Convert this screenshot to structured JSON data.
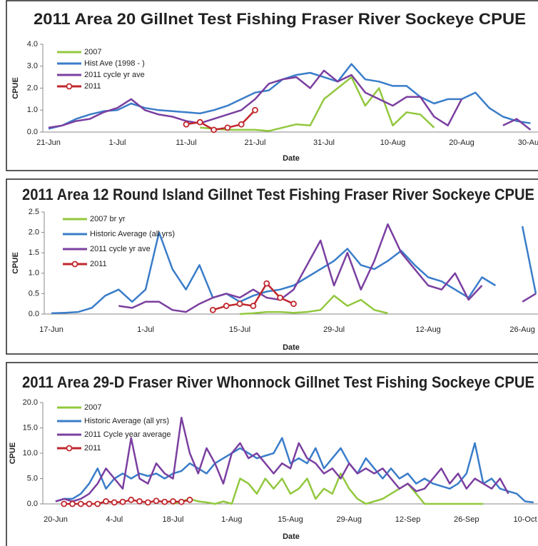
{
  "chart_data": [
    {
      "type": "line",
      "title": "2011 Area 20 Gillnet Test Fishing Fraser River Sockeye CPUE",
      "x_label": "Date",
      "y_label": "CPUE",
      "categories": [
        "21-Jun",
        null,
        null,
        null,
        null,
        "1-Jul",
        null,
        null,
        null,
        null,
        "11-Jul",
        null,
        null,
        null,
        null,
        "21-Jul",
        null,
        null,
        null,
        null,
        "31-Jul",
        null,
        null,
        null,
        null,
        "10-Aug",
        null,
        null,
        null,
        null,
        "20-Aug",
        null,
        null,
        null,
        null,
        "30-Aug"
      ],
      "ylim": [
        0,
        4
      ],
      "yticks": [
        {
          "value": 0,
          "label": "0.0"
        },
        {
          "value": 1,
          "label": "1.0"
        },
        {
          "value": 2,
          "label": "2.0"
        },
        {
          "value": 3,
          "label": "3.0"
        },
        {
          "value": 4,
          "label": "4.0"
        }
      ],
      "legend": "upper left",
      "series": [
        {
          "name": "2007",
          "color": "#92c83e",
          "values": [
            null,
            null,
            null,
            null,
            null,
            null,
            null,
            null,
            null,
            null,
            null,
            0.2,
            0.15,
            0.1,
            0.1,
            0.1,
            0.05,
            0.2,
            0.35,
            0.3,
            1.5,
            2.0,
            2.5,
            1.2,
            2.0,
            0.3,
            0.9,
            0.8,
            0.2,
            null,
            null,
            null,
            null,
            null,
            null,
            null
          ]
        },
        {
          "name": "Hist Ave (1998 - )",
          "color": "#3a7dc9",
          "values": [
            0.15,
            0.3,
            0.6,
            0.8,
            0.95,
            1.0,
            1.3,
            1.1,
            1.0,
            0.95,
            0.9,
            0.85,
            1.0,
            1.2,
            1.5,
            1.8,
            1.9,
            2.4,
            2.6,
            2.7,
            2.5,
            2.3,
            3.1,
            2.4,
            2.3,
            2.1,
            2.1,
            1.6,
            1.3,
            1.5,
            1.5,
            1.8,
            1.1,
            0.7,
            0.5,
            0.4
          ]
        },
        {
          "name": "2011 cycle yr ave",
          "color": "#7b3fa0",
          "values": [
            0.2,
            0.3,
            0.5,
            0.6,
            0.9,
            1.1,
            1.5,
            1.0,
            0.8,
            0.7,
            0.5,
            0.4,
            0.6,
            0.8,
            1.0,
            1.5,
            2.2,
            2.4,
            2.5,
            2.0,
            2.8,
            2.3,
            2.6,
            1.8,
            1.5,
            1.2,
            1.6,
            1.6,
            0.7,
            0.3,
            1.5,
            null,
            null,
            0.3,
            0.6,
            0.1
          ]
        },
        {
          "name": "2011",
          "color": "#c0262c",
          "marker": "circle",
          "values": [
            null,
            null,
            null,
            null,
            null,
            null,
            null,
            null,
            null,
            null,
            0.35,
            0.45,
            0.1,
            0.2,
            0.35,
            1.0,
            null,
            null,
            null,
            null,
            null,
            null,
            null,
            null,
            null,
            null,
            null,
            null,
            null,
            null,
            null,
            null,
            null,
            null,
            null,
            null
          ]
        }
      ]
    },
    {
      "type": "line",
      "title": "2011 Area 12 Round Island Gillnet Test Fishing Fraser River Sockeye CPUE",
      "x_label": "Date",
      "y_label": "CPUE",
      "categories": [
        "17-Jun",
        null,
        null,
        null,
        null,
        null,
        null,
        "1-Jul",
        null,
        null,
        null,
        null,
        null,
        null,
        "15-Jul",
        null,
        null,
        null,
        null,
        null,
        null,
        "29-Jul",
        null,
        null,
        null,
        null,
        null,
        null,
        "12-Aug",
        null,
        null,
        null,
        null,
        null,
        null,
        "26-Aug",
        null
      ],
      "ylim": [
        0,
        2.5
      ],
      "yticks": [
        {
          "value": 0,
          "label": "0.0"
        },
        {
          "value": 0.5,
          "label": "0.5"
        },
        {
          "value": 1,
          "label": "1.0"
        },
        {
          "value": 1.5,
          "label": "1.5"
        },
        {
          "value": 2,
          "label": "2.0"
        },
        2.5
      ],
      "legend": "upper left",
      "series": [
        {
          "name": "2007 br yr",
          "color": "#92c83e",
          "values": [
            null,
            null,
            null,
            null,
            null,
            null,
            null,
            null,
            null,
            null,
            null,
            null,
            null,
            null,
            0.0,
            0.02,
            0.05,
            0.05,
            0.03,
            0.05,
            0.1,
            0.45,
            0.2,
            0.35,
            0.1,
            0.02,
            null,
            null,
            null,
            null,
            null,
            null,
            null,
            null,
            null,
            null,
            null
          ]
        },
        {
          "name": "Historic Average (all yrs)",
          "color": "#3a7dc9",
          "values": [
            0.02,
            0.03,
            0.05,
            0.15,
            0.45,
            0.6,
            0.3,
            0.6,
            2.0,
            1.1,
            0.6,
            1.2,
            0.4,
            0.5,
            0.3,
            0.45,
            0.55,
            0.6,
            0.7,
            0.9,
            1.1,
            1.3,
            1.6,
            1.2,
            1.1,
            1.3,
            1.55,
            1.2,
            0.9,
            0.8,
            0.6,
            0.4,
            0.9,
            0.7,
            null,
            2.15,
            0.5
          ]
        },
        {
          "name": "2011 cycle yr ave",
          "color": "#7b3fa0",
          "values": [
            null,
            null,
            null,
            null,
            null,
            0.2,
            0.15,
            0.3,
            0.3,
            0.1,
            0.05,
            0.25,
            0.4,
            0.5,
            0.4,
            0.6,
            0.4,
            0.35,
            0.6,
            1.2,
            1.8,
            0.7,
            1.5,
            0.6,
            1.3,
            2.2,
            1.5,
            1.1,
            0.7,
            0.6,
            1.0,
            0.35,
            0.7,
            null,
            null,
            0.3,
            0.5
          ]
        },
        {
          "name": "2011",
          "color": "#c0262c",
          "marker": "circle",
          "values": [
            null,
            null,
            null,
            null,
            null,
            null,
            null,
            null,
            null,
            null,
            null,
            null,
            0.1,
            0.2,
            0.25,
            0.2,
            0.75,
            0.4,
            0.25,
            null,
            null,
            null,
            null,
            null,
            null,
            null,
            null,
            null,
            null,
            null,
            null,
            null,
            null,
            null,
            null,
            null,
            null
          ]
        }
      ]
    },
    {
      "type": "line",
      "title": "2011 Area 29-D Fraser River Whonnock Gillnet Test Fishing Sockeye CPUE",
      "x_label": "Date",
      "y_label": "CPUE",
      "categories": [
        "20-Jun",
        null,
        null,
        null,
        null,
        null,
        null,
        "4-Jul",
        null,
        null,
        null,
        null,
        null,
        null,
        "18-Jul",
        null,
        null,
        null,
        null,
        null,
        null,
        "1-Aug",
        null,
        null,
        null,
        null,
        null,
        null,
        "15-Aug",
        null,
        null,
        null,
        null,
        null,
        null,
        "29-Aug",
        null,
        null,
        null,
        null,
        null,
        null,
        "12-Sep",
        null,
        null,
        null,
        null,
        null,
        null,
        "26-Sep",
        null,
        null,
        null,
        null,
        null,
        null,
        "10-Oct",
        null
      ],
      "ylim": [
        0,
        20
      ],
      "yticks": [
        {
          "value": 0,
          "label": "0.0"
        },
        {
          "value": 5,
          "label": "5.0"
        },
        {
          "value": 10,
          "label": "10.0"
        },
        {
          "value": 15,
          "label": "15.0"
        },
        {
          "value": 20,
          "label": "20.0"
        }
      ],
      "legend": "upper left",
      "series": [
        {
          "name": "2007",
          "color": "#92c83e",
          "values": [
            null,
            null,
            null,
            null,
            null,
            null,
            null,
            null,
            null,
            null,
            null,
            null,
            null,
            null,
            0,
            0.5,
            1,
            0.5,
            0.3,
            0,
            0.5,
            0,
            5,
            4,
            2,
            5,
            3,
            5,
            2,
            3,
            5,
            1,
            3,
            2,
            6,
            3,
            1,
            0,
            0.5,
            1,
            2,
            3,
            4,
            2,
            0,
            0,
            0,
            0,
            0,
            0,
            0,
            0,
            null,
            null,
            null,
            null,
            null,
            null
          ]
        },
        {
          "name": "Historic Average (all yrs)",
          "color": "#3a7dc9",
          "values": [
            0.5,
            1,
            1,
            2,
            4,
            7,
            3,
            5,
            6,
            5,
            6,
            5.5,
            6,
            5,
            6,
            6.5,
            8,
            7,
            6,
            8,
            9,
            10,
            11,
            10,
            9,
            9.5,
            10,
            13,
            8,
            9,
            8,
            11,
            7,
            9,
            11,
            8,
            6,
            9,
            7,
            5,
            7,
            5,
            6,
            4,
            5,
            4,
            3.5,
            3,
            4,
            6,
            12,
            4,
            5,
            3,
            2.5,
            2,
            0.5,
            0.3
          ]
        },
        {
          "name": "2011 Cycle year average",
          "color": "#7b3fa0",
          "values": [
            0.5,
            1,
            0.5,
            1,
            2,
            4,
            7,
            5,
            3,
            13,
            5,
            4,
            8,
            6,
            5,
            17,
            10,
            6,
            11,
            8,
            4,
            10,
            12,
            9,
            10,
            8,
            6,
            8,
            7,
            12,
            9,
            8,
            6,
            7,
            5,
            8,
            6,
            7,
            6,
            7,
            5,
            3,
            4,
            2.5,
            3,
            5,
            7,
            4,
            6,
            3,
            5,
            4,
            3,
            5,
            2,
            null,
            null,
            null
          ]
        },
        {
          "name": "2011",
          "color": "#c0262c",
          "marker": "circle",
          "values": [
            null,
            0,
            0,
            0,
            0,
            0,
            0.5,
            0.3,
            0.4,
            0.8,
            0.5,
            0.3,
            0.6,
            0.4,
            0.5,
            0.4,
            0.8,
            null,
            null,
            null,
            null,
            null,
            null,
            null,
            null,
            null,
            null,
            null,
            null,
            null,
            null,
            null,
            null,
            null,
            null,
            null,
            null,
            null,
            null,
            null,
            null,
            null,
            null,
            null,
            null,
            null,
            null,
            null,
            null,
            null,
            null,
            null,
            null,
            null,
            null,
            null,
            null,
            null
          ]
        }
      ]
    }
  ]
}
